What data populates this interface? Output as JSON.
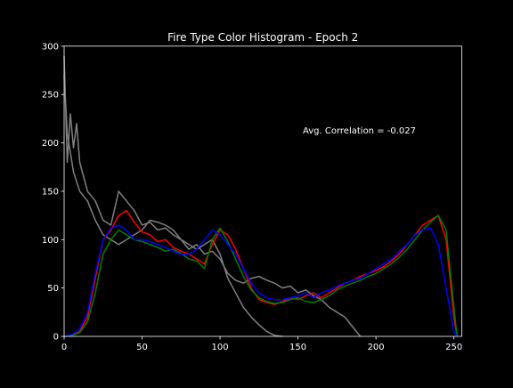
{
  "chart_data": {
    "type": "line",
    "title": "Fire Type Color Histogram - Epoch 2",
    "xlabel": "",
    "ylabel": "",
    "xlim": [
      0,
      255
    ],
    "ylim": [
      0,
      300
    ],
    "xticks": [
      0,
      50,
      100,
      150,
      200,
      250
    ],
    "yticks": [
      0,
      50,
      100,
      150,
      200,
      250,
      300
    ],
    "grid": false,
    "annotation": "Avg. Correlation = -0.027",
    "colors": {
      "background": "#000000",
      "axes": "#ffffff",
      "text": "#ffffff"
    },
    "series": [
      {
        "color": "#808080",
        "x": [
          0,
          2,
          4,
          6,
          8,
          10,
          15,
          20,
          25,
          30,
          35,
          40,
          45,
          50,
          55,
          60,
          65,
          70,
          75,
          80,
          85,
          90,
          95,
          100,
          105,
          110,
          115,
          120,
          125,
          130,
          135,
          140,
          145,
          150,
          155,
          160,
          165,
          170,
          175,
          180,
          185,
          190
        ],
        "y": [
          290,
          180,
          230,
          195,
          220,
          180,
          150,
          140,
          120,
          115,
          150,
          140,
          130,
          115,
          118,
          110,
          112,
          105,
          100,
          90,
          95,
          85,
          88,
          80,
          65,
          58,
          55,
          60,
          62,
          58,
          55,
          50,
          52,
          45,
          48,
          42,
          38,
          30,
          25,
          20,
          10,
          0
        ]
      },
      {
        "color": "#808080",
        "x": [
          0,
          2,
          4,
          6,
          8,
          10,
          15,
          20,
          25,
          30,
          35,
          40,
          45,
          50,
          55,
          60,
          65,
          70,
          75,
          80,
          85,
          90,
          95,
          100,
          105,
          110,
          115,
          120,
          125,
          130,
          135,
          140
        ],
        "y": [
          270,
          210,
          190,
          170,
          160,
          150,
          140,
          120,
          105,
          100,
          95,
          100,
          105,
          110,
          120,
          118,
          115,
          110,
          100,
          95,
          90,
          95,
          100,
          85,
          60,
          45,
          30,
          20,
          12,
          5,
          1,
          0
        ]
      },
      {
        "color": "#ff0000",
        "x": [
          0,
          5,
          10,
          15,
          20,
          25,
          30,
          35,
          40,
          45,
          50,
          55,
          60,
          65,
          70,
          75,
          80,
          85,
          90,
          95,
          100,
          105,
          110,
          115,
          120,
          125,
          130,
          135,
          140,
          145,
          150,
          155,
          160,
          165,
          170,
          175,
          180,
          185,
          190,
          195,
          200,
          205,
          210,
          215,
          220,
          225,
          230,
          235,
          240,
          245,
          250,
          252
        ],
        "y": [
          0,
          1,
          5,
          20,
          60,
          100,
          110,
          125,
          130,
          118,
          108,
          105,
          98,
          100,
          92,
          88,
          85,
          80,
          75,
          95,
          110,
          105,
          90,
          70,
          50,
          38,
          35,
          33,
          36,
          40,
          38,
          42,
          45,
          40,
          45,
          50,
          55,
          58,
          62,
          65,
          68,
          72,
          78,
          85,
          95,
          105,
          115,
          120,
          125,
          100,
          20,
          0
        ]
      },
      {
        "color": "#008000",
        "x": [
          0,
          5,
          10,
          15,
          20,
          25,
          30,
          35,
          40,
          45,
          50,
          55,
          60,
          65,
          70,
          75,
          80,
          85,
          90,
          95,
          100,
          105,
          110,
          115,
          120,
          125,
          130,
          135,
          140,
          145,
          150,
          155,
          160,
          165,
          170,
          175,
          180,
          185,
          190,
          195,
          200,
          205,
          210,
          215,
          220,
          225,
          230,
          235,
          240,
          245,
          250,
          252
        ],
        "y": [
          0,
          1,
          4,
          15,
          45,
          85,
          100,
          110,
          105,
          100,
          98,
          95,
          92,
          88,
          90,
          86,
          80,
          78,
          70,
          100,
          112,
          98,
          80,
          62,
          48,
          40,
          36,
          34,
          35,
          38,
          40,
          36,
          35,
          38,
          42,
          48,
          52,
          55,
          58,
          62,
          65,
          70,
          75,
          82,
          90,
          100,
          110,
          118,
          125,
          110,
          30,
          0
        ]
      },
      {
        "color": "#0000ff",
        "x": [
          0,
          5,
          10,
          15,
          20,
          25,
          30,
          35,
          40,
          45,
          50,
          55,
          60,
          65,
          70,
          75,
          80,
          85,
          90,
          95,
          100,
          105,
          110,
          115,
          120,
          125,
          130,
          135,
          140,
          145,
          150,
          155,
          160,
          165,
          170,
          175,
          180,
          185,
          190,
          195,
          200,
          205,
          210,
          215,
          220,
          225,
          230,
          235,
          240,
          245,
          250,
          252
        ],
        "y": [
          0,
          2,
          8,
          25,
          65,
          100,
          112,
          115,
          110,
          100,
          100,
          98,
          95,
          92,
          88,
          85,
          85,
          90,
          100,
          110,
          105,
          95,
          85,
          70,
          55,
          45,
          40,
          38,
          38,
          40,
          42,
          45,
          40,
          45,
          48,
          52,
          55,
          58,
          60,
          65,
          70,
          75,
          80,
          88,
          95,
          105,
          110,
          112,
          95,
          50,
          5,
          0
        ]
      }
    ]
  }
}
